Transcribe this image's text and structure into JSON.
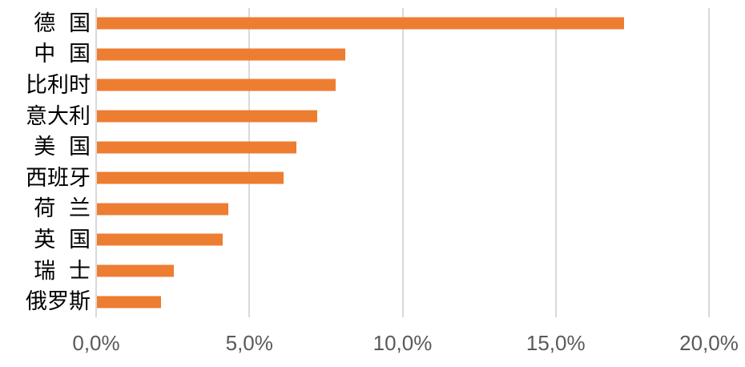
{
  "chart_data": {
    "type": "bar",
    "orientation": "horizontal",
    "title": "",
    "xlabel": "",
    "ylabel": "",
    "legend": "none",
    "categories": [
      "德国",
      "中国",
      "比利时",
      "意大利",
      "美国",
      "西班牙",
      "荷兰",
      "英国",
      "瑞士",
      "俄罗斯"
    ],
    "values": [
      17.2,
      8.1,
      7.8,
      7.2,
      6.5,
      6.1,
      4.3,
      4.1,
      2.5,
      2.1
    ],
    "unit": "%",
    "xlim": [
      0,
      20
    ],
    "x_ticks": [
      {
        "value": 0,
        "label": "0,0%"
      },
      {
        "value": 5,
        "label": "5,0%"
      },
      {
        "value": 10,
        "label": "10,0%"
      },
      {
        "value": 15,
        "label": "15,0%"
      },
      {
        "value": 20,
        "label": "20,0%"
      }
    ],
    "grid": "vertical-gridlines-at-ticks",
    "colors": {
      "bar": "#ED7D31",
      "gridline": "#D9D9D9",
      "axis_line": "#D9D9D9",
      "tick_label": "#595959",
      "category_label": "#000000",
      "background": "#FFFFFF"
    }
  }
}
